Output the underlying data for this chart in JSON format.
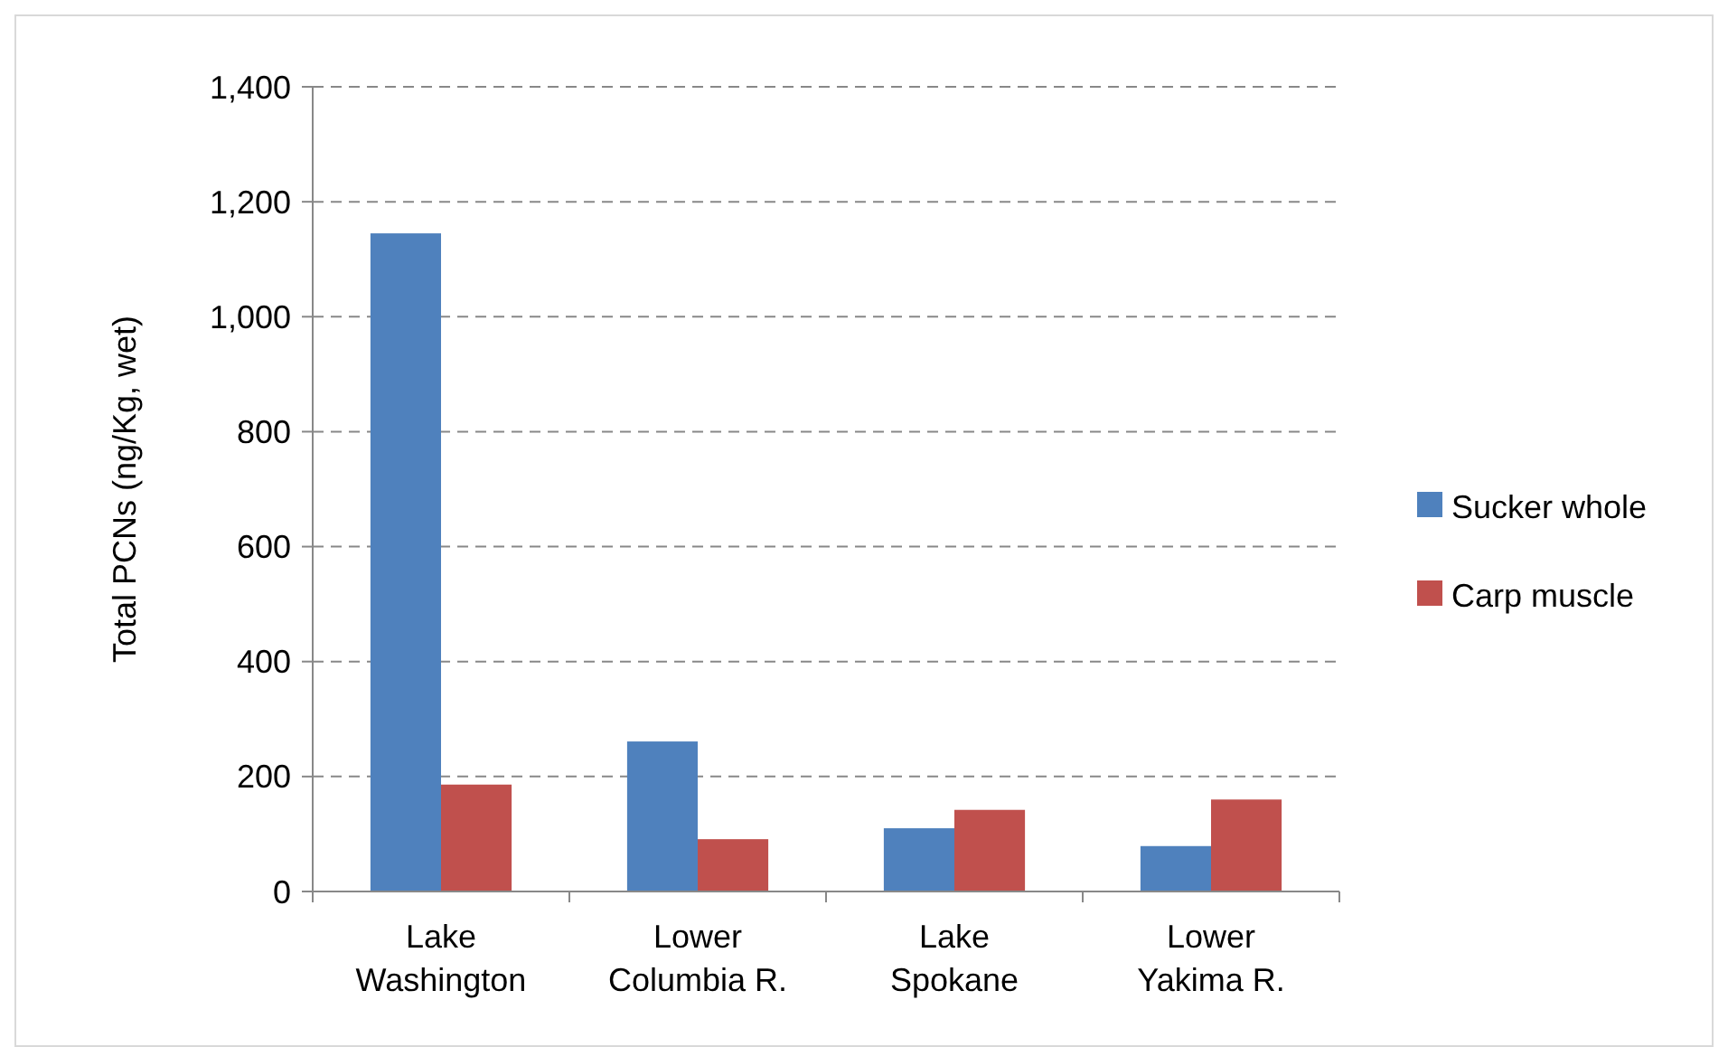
{
  "chart_data": {
    "type": "bar",
    "ylabel": "Total PCNs (ng/Kg, wet)",
    "categories": [
      "Lake Washington",
      "Lower Columbia R.",
      "Lake Spokane",
      "Lower Yakima R."
    ],
    "series": [
      {
        "name": "Sucker whole",
        "color": "#4f81bd",
        "values": [
          1145,
          261,
          110,
          79
        ]
      },
      {
        "name": "Carp muscle",
        "color": "#c0504d",
        "values": [
          186,
          91,
          142,
          160
        ]
      }
    ],
    "ylim": [
      0,
      1400
    ],
    "yticks": [
      {
        "value": 0,
        "label": "0"
      },
      {
        "value": 200,
        "label": "200"
      },
      {
        "value": 400,
        "label": "400"
      },
      {
        "value": 600,
        "label": "600"
      },
      {
        "value": 800,
        "label": "800"
      },
      {
        "value": 1000,
        "label": "1,000"
      },
      {
        "value": 1200,
        "label": "1,200"
      },
      {
        "value": 1400,
        "label": "1,400"
      }
    ],
    "grid": "y",
    "legend": "right"
  }
}
